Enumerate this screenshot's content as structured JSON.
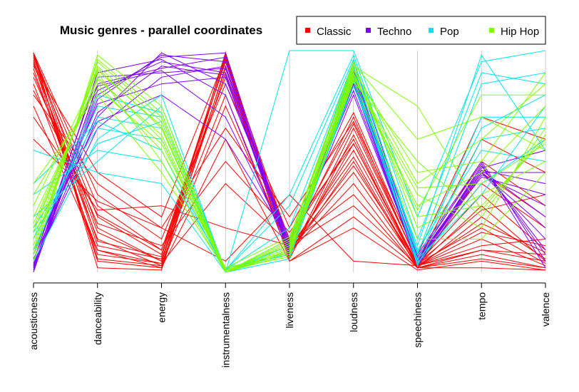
{
  "chart_data": {
    "type": "parallel_coordinates",
    "title": "Music genres - parallel coordinates",
    "axes": [
      "acousticness",
      "danceability",
      "energy",
      "instrumentalness",
      "liveness",
      "loudness",
      "speechiness",
      "tempo",
      "valence"
    ],
    "ylim": [
      0,
      1
    ],
    "grid": false,
    "legend_position": "top-right",
    "legend": [
      {
        "name": "Classic",
        "color": "#ff0000"
      },
      {
        "name": "Techno",
        "color": "#8000ff"
      },
      {
        "name": "Pop",
        "color": "#00e5ee"
      },
      {
        "name": "Hip Hop",
        "color": "#80ff00"
      }
    ],
    "series": [
      {
        "name": "Classic",
        "color": "#ff0000",
        "lines": [
          [
            0.99,
            0.2,
            0.05,
            0.92,
            0.1,
            0.55,
            0.03,
            0.3,
            0.05
          ],
          [
            0.95,
            0.05,
            0.02,
            0.97,
            0.08,
            0.5,
            0.02,
            0.08,
            0.02
          ],
          [
            0.98,
            0.3,
            0.1,
            0.95,
            0.12,
            0.7,
            0.04,
            0.2,
            0.04
          ],
          [
            0.9,
            0.15,
            0.03,
            0.9,
            0.15,
            0.6,
            0.02,
            0.1,
            0.08
          ],
          [
            0.97,
            0.25,
            0.08,
            0.98,
            0.07,
            0.65,
            0.05,
            0.4,
            0.2
          ],
          [
            0.85,
            0.1,
            0.02,
            0.6,
            0.05,
            0.2,
            0.01,
            0.05,
            0.01
          ],
          [
            0.99,
            0.35,
            0.15,
            0.85,
            0.2,
            0.72,
            0.06,
            0.5,
            0.3
          ],
          [
            0.92,
            0.08,
            0.04,
            0.99,
            0.1,
            0.45,
            0.03,
            0.15,
            0.03
          ],
          [
            0.8,
            0.4,
            0.2,
            0.65,
            0.25,
            0.68,
            0.08,
            0.7,
            0.6
          ],
          [
            0.96,
            0.12,
            0.06,
            0.8,
            0.09,
            0.4,
            0.02,
            0.25,
            0.06
          ],
          [
            0.7,
            0.28,
            0.3,
            0.2,
            0.12,
            0.3,
            0.03,
            0.12,
            0.15
          ],
          [
            0.99,
            0.02,
            0.01,
            0.93,
            0.05,
            0.25,
            0.02,
            0.02,
            0.01
          ],
          [
            0.88,
            0.22,
            0.12,
            0.5,
            0.18,
            0.58,
            0.04,
            0.35,
            0.1
          ],
          [
            0.94,
            0.18,
            0.05,
            0.99,
            0.06,
            0.62,
            0.03,
            0.18,
            0.12
          ],
          [
            0.6,
            0.32,
            0.2,
            0.05,
            0.35,
            0.05,
            0.03,
            0.22,
            0.09
          ],
          [
            0.98,
            0.06,
            0.03,
            0.75,
            0.11,
            0.52,
            0.02,
            0.45,
            0.25
          ],
          [
            0.93,
            0.45,
            0.25,
            0.97,
            0.14,
            0.67,
            0.05,
            0.6,
            0.45
          ],
          [
            0.99,
            0.14,
            0.07,
            0.96,
            0.08,
            0.58,
            0.03,
            0.1,
            0.05
          ],
          [
            0.82,
            0.26,
            0.1,
            0.88,
            0.1,
            0.48,
            0.04,
            0.28,
            0.35
          ],
          [
            0.75,
            0.1,
            0.04,
            0.4,
            0.13,
            0.35,
            0.02,
            0.06,
            0.02
          ]
        ]
      },
      {
        "name": "Techno",
        "color": "#8000ff",
        "lines": [
          [
            0.02,
            0.82,
            0.95,
            0.9,
            0.1,
            0.9,
            0.05,
            0.45,
            0.2
          ],
          [
            0.01,
            0.78,
            0.98,
            0.95,
            0.08,
            0.92,
            0.04,
            0.48,
            0.1
          ],
          [
            0.05,
            0.88,
            0.9,
            0.92,
            0.12,
            0.88,
            0.06,
            0.46,
            0.4
          ],
          [
            0.03,
            0.7,
            0.99,
            0.85,
            0.15,
            0.95,
            0.08,
            0.5,
            0.05
          ],
          [
            0.0,
            0.85,
            0.92,
            0.97,
            0.09,
            0.85,
            0.03,
            0.44,
            0.3
          ],
          [
            0.08,
            0.76,
            0.85,
            0.88,
            0.11,
            0.8,
            0.05,
            0.47,
            0.55
          ],
          [
            0.02,
            0.9,
            0.96,
            0.8,
            0.07,
            0.91,
            0.04,
            0.45,
            0.15
          ],
          [
            0.04,
            0.65,
            0.88,
            0.93,
            0.13,
            0.87,
            0.07,
            0.49,
            0.02
          ],
          [
            0.01,
            0.8,
            0.97,
            0.99,
            0.1,
            0.93,
            0.05,
            0.46,
            0.25
          ],
          [
            0.06,
            0.72,
            0.93,
            0.89,
            0.08,
            0.89,
            0.06,
            0.43,
            0.35
          ],
          [
            0.03,
            0.84,
            0.91,
            0.7,
            0.12,
            0.86,
            0.04,
            0.48,
            0.08
          ],
          [
            0.1,
            0.68,
            0.8,
            0.6,
            0.14,
            0.82,
            0.05,
            0.45,
            0.45
          ]
        ]
      },
      {
        "name": "Pop",
        "color": "#00e5ee",
        "lines": [
          [
            0.1,
            0.75,
            0.7,
            0.01,
            0.35,
            0.98,
            0.15,
            0.9,
            0.85
          ],
          [
            0.2,
            0.65,
            0.6,
            0.0,
            0.1,
            0.9,
            0.05,
            0.7,
            0.7
          ],
          [
            0.05,
            0.6,
            0.8,
            0.0,
            1.0,
            1.0,
            0.25,
            0.95,
            1.0
          ],
          [
            0.35,
            0.55,
            0.5,
            0.02,
            0.08,
            0.88,
            0.04,
            0.4,
            0.6
          ],
          [
            0.15,
            0.7,
            0.65,
            0.0,
            0.12,
            0.92,
            0.08,
            0.85,
            0.9
          ],
          [
            0.25,
            0.5,
            0.75,
            0.01,
            0.2,
            0.95,
            0.1,
            0.55,
            0.5
          ],
          [
            0.4,
            0.68,
            0.55,
            0.0,
            0.06,
            0.86,
            0.06,
            0.35,
            0.75
          ],
          [
            0.08,
            0.8,
            0.72,
            0.0,
            0.15,
            0.93,
            0.03,
            0.6,
            0.65
          ],
          [
            0.55,
            0.45,
            0.4,
            0.0,
            0.09,
            0.84,
            0.12,
            0.98,
            0.55
          ],
          [
            0.18,
            0.58,
            0.68,
            0.01,
            0.3,
            0.96,
            0.09,
            0.65,
            0.8
          ]
        ]
      },
      {
        "name": "Hip Hop",
        "color": "#80ff00",
        "lines": [
          [
            0.15,
            0.92,
            0.65,
            0.0,
            0.1,
            0.9,
            0.25,
            0.3,
            0.6
          ],
          [
            0.1,
            0.95,
            0.7,
            0.01,
            0.12,
            0.88,
            0.35,
            0.2,
            0.7
          ],
          [
            0.2,
            0.88,
            0.6,
            0.0,
            0.08,
            0.92,
            0.4,
            0.6,
            0.85
          ],
          [
            0.05,
            0.98,
            0.75,
            0.0,
            0.15,
            0.95,
            0.2,
            0.35,
            0.5
          ],
          [
            0.25,
            0.85,
            0.55,
            0.02,
            0.09,
            0.86,
            0.5,
            0.25,
            0.65
          ],
          [
            0.3,
            0.9,
            0.5,
            0.0,
            0.11,
            0.89,
            0.3,
            0.45,
            0.75
          ],
          [
            0.12,
            0.93,
            0.68,
            0.0,
            0.14,
            0.94,
            0.6,
            0.7,
            0.55
          ],
          [
            0.4,
            0.8,
            0.45,
            0.01,
            0.07,
            0.87,
            0.15,
            0.15,
            0.45
          ],
          [
            0.08,
            0.96,
            0.72,
            0.0,
            0.13,
            0.91,
            0.45,
            0.5,
            0.9
          ],
          [
            0.22,
            0.87,
            0.62,
            0.0,
            0.1,
            0.93,
            0.75,
            0.28,
            0.62
          ],
          [
            0.35,
            0.83,
            0.58,
            0.02,
            0.16,
            0.9,
            0.28,
            0.8,
            0.8
          ],
          [
            0.18,
            0.91,
            0.66,
            0.0,
            0.09,
            0.88,
            0.38,
            0.4,
            0.58
          ]
        ]
      }
    ]
  }
}
